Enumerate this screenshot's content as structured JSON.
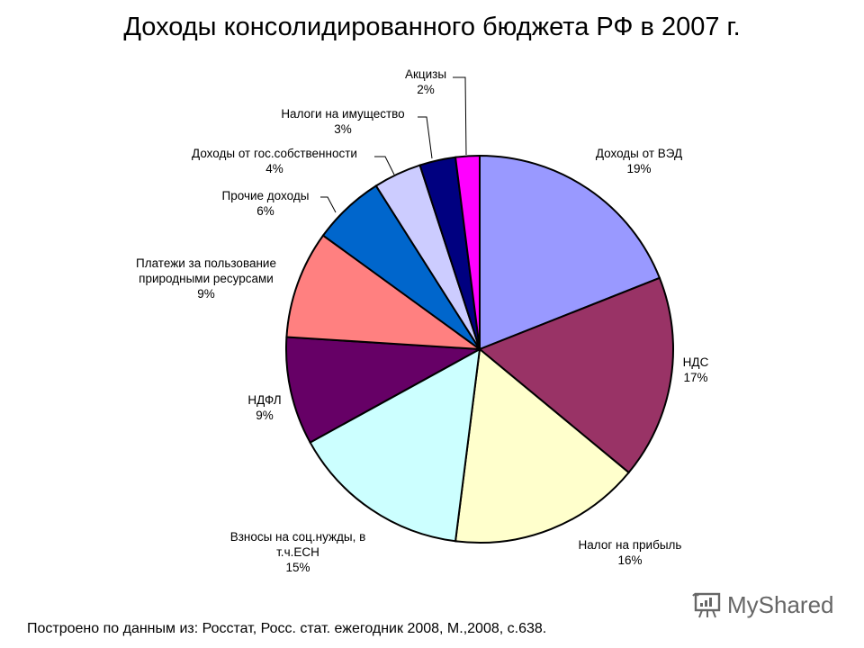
{
  "title": "Доходы консолидированного бюджета РФ в 2007 г.",
  "source": "Построено по данным из: Росстат, Росс. стат. ежегодник 2008, М.,2008, с.638.",
  "brand": {
    "name": "MyShared",
    "icon": "presentation-board-icon"
  },
  "labels": [
    {
      "name": "Доходы от ВЭД",
      "pct": "19%"
    },
    {
      "name": "НДС",
      "pct": "17%"
    },
    {
      "name": "Налог на прибыль",
      "pct": "16%"
    },
    {
      "name1": "Взносы на соц.нужды, в",
      "name2": "т.ч.ЕСН",
      "pct": "15%"
    },
    {
      "name": "НДФЛ",
      "pct": "9%"
    },
    {
      "name1": "Платежи за пользование",
      "name2": "природными ресурсами",
      "pct": "9%"
    },
    {
      "name": "Прочие доходы",
      "pct": "6%"
    },
    {
      "name": "Доходы от гос.собственности",
      "pct": "4%"
    },
    {
      "name": "Налоги на имущество",
      "pct": "3%"
    },
    {
      "name": "Акцизы",
      "pct": "2%"
    }
  ],
  "chart_data": {
    "type": "pie",
    "title": "Доходы консолидированного бюджета РФ в 2007 г.",
    "categories": [
      "Доходы от ВЭД",
      "НДС",
      "Налог на прибыль",
      "Взносы на соц.нужды, в т.ч.ЕСН",
      "НДФЛ",
      "Платежи за пользование природными ресурсами",
      "Прочие доходы",
      "Доходы от гос.собственности",
      "Налоги на имущество",
      "Акцизы"
    ],
    "values": [
      19,
      17,
      16,
      15,
      9,
      9,
      6,
      4,
      3,
      2
    ],
    "unit": "%",
    "colors": [
      "#9999FF",
      "#993366",
      "#FFFFCC",
      "#CCFFFF",
      "#660066",
      "#FF8080",
      "#0066CC",
      "#CCCCFF",
      "#000080",
      "#FF00FF"
    ],
    "start_angle": "12 o'clock, clockwise",
    "legend": "none (data labels with leader lines)",
    "note": "Построено по данным из: Росстат, Росс. стат. ежегодник 2008, М.,2008, с.638."
  }
}
